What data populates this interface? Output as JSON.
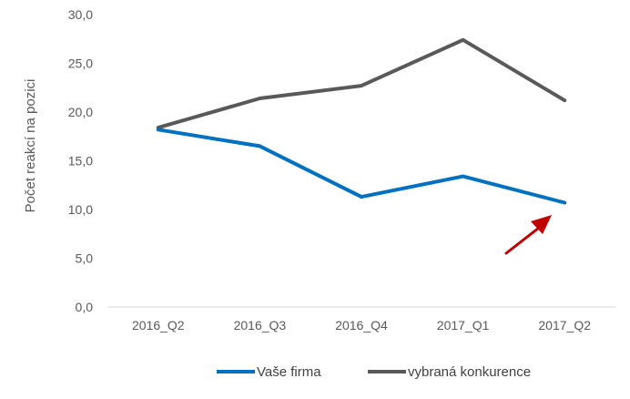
{
  "chart_data": {
    "type": "line",
    "categories": [
      "2016_Q2",
      "2016_Q3",
      "2016_Q4",
      "2017_Q1",
      "2017_Q2"
    ],
    "series": [
      {
        "name": "Vaše firma",
        "color": "#0070c0",
        "values": [
          18.2,
          16.5,
          11.3,
          13.4,
          10.7
        ]
      },
      {
        "name": "vybraná konkurence",
        "color": "#595959",
        "values": [
          18.4,
          21.4,
          22.7,
          27.4,
          21.2
        ]
      }
    ],
    "ylabel": "Počet reakcí na pozici",
    "yticks": [
      "0,0",
      "5,0",
      "10,0",
      "15,0",
      "20,0",
      "25,0",
      "30,0"
    ],
    "ylim": [
      0,
      30
    ],
    "grid": false,
    "legend": "bottom-right",
    "annotation": {
      "type": "arrow",
      "color": "#c00000",
      "points_to": "2017_Q2 Vaše firma"
    }
  }
}
